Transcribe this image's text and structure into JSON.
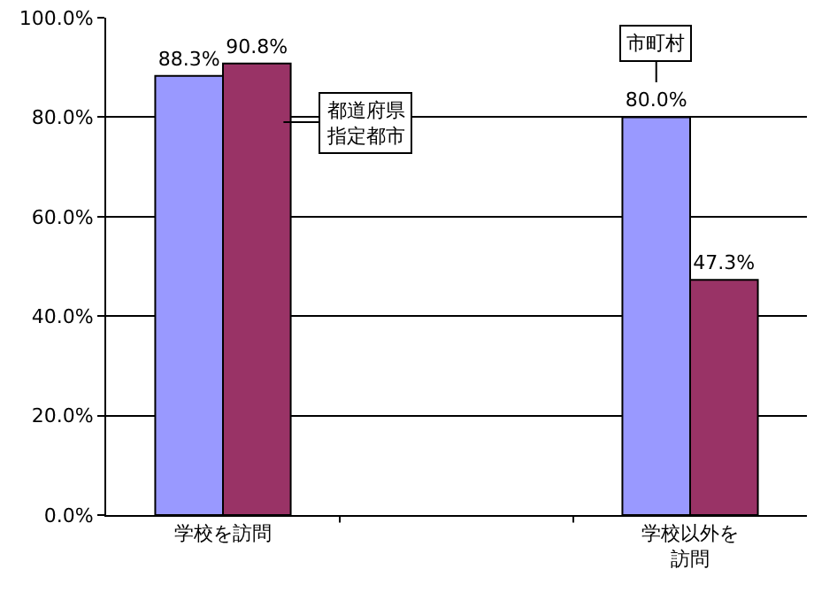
{
  "chart_data": {
    "type": "bar",
    "categories": [
      "学校を訪問",
      null,
      "学校以外を訪問"
    ],
    "series": [
      {
        "color": "#9999ff",
        "values": [
          88.3,
          null,
          80.0
        ],
        "value_labels": [
          "88.3%",
          null,
          "80.0%"
        ]
      },
      {
        "color": "#993366",
        "values": [
          90.8,
          null,
          47.3
        ],
        "value_labels": [
          "90.8%",
          null,
          "47.3%"
        ]
      }
    ],
    "ylim": [
      0,
      100
    ],
    "yticks": [
      {
        "value": 0,
        "label": "0.0%"
      },
      {
        "value": 20,
        "label": "20.0%"
      },
      {
        "value": 40,
        "label": "40.0%"
      },
      {
        "value": 60,
        "label": "60.0%"
      },
      {
        "value": 80,
        "label": "80.0%"
      },
      {
        "value": 100,
        "label": "100.0%"
      }
    ],
    "grid": "y",
    "annotations": [
      "都道府県指定都市",
      "市町村"
    ]
  }
}
